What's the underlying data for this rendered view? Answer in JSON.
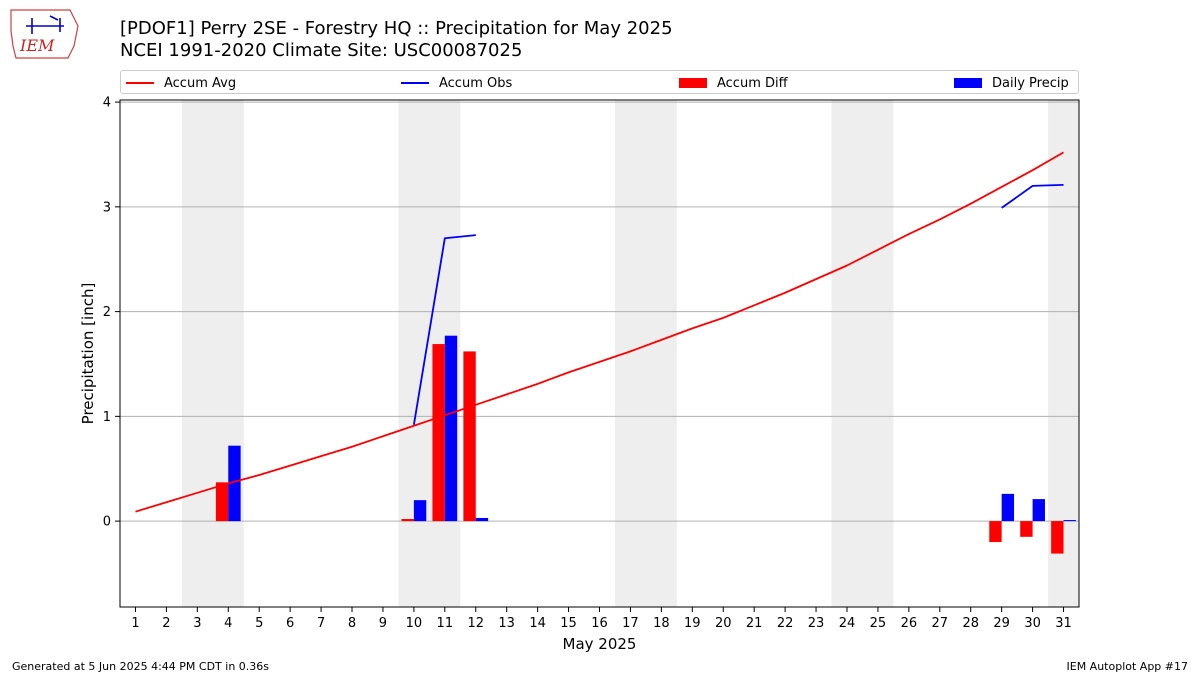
{
  "logo": {
    "text": "IEM"
  },
  "title": "[PDOF1] Perry 2SE - Forestry HQ :: Precipitation for May 2025",
  "subtitle": "NCEI 1991-2020 Climate Site: USC00087025",
  "legend": {
    "items": [
      {
        "label": "Accum Avg",
        "kind": "line",
        "color": "#ff0000"
      },
      {
        "label": "Accum Obs",
        "kind": "line",
        "color": "#0000ff"
      },
      {
        "label": "Accum Diff",
        "kind": "bar",
        "color": "#ff0000"
      },
      {
        "label": "Daily Precip",
        "kind": "bar",
        "color": "#0000ff"
      }
    ]
  },
  "footer": {
    "left": "Generated at 5 Jun 2025 4:44 PM CDT in 0.36s",
    "right": "IEM Autoplot App #17"
  },
  "chart_data": {
    "type": "bar",
    "xlabel": "May 2025",
    "ylabel": "Precipitation [inch]",
    "xlim": [
      0.5,
      31.5
    ],
    "ylim": [
      -0.82,
      4.02
    ],
    "yticks": [
      0,
      1,
      2,
      3,
      4
    ],
    "categories": [
      "1",
      "2",
      "3",
      "4",
      "5",
      "6",
      "7",
      "8",
      "9",
      "10",
      "11",
      "12",
      "13",
      "14",
      "15",
      "16",
      "17",
      "18",
      "19",
      "20",
      "21",
      "22",
      "23",
      "24",
      "25",
      "26",
      "27",
      "28",
      "29",
      "30",
      "31"
    ],
    "weekend_shading": [
      [
        3,
        4
      ],
      [
        10,
        11
      ],
      [
        17,
        18
      ],
      [
        24,
        25
      ],
      [
        31,
        31
      ]
    ],
    "grid": "horizontal",
    "series": [
      {
        "name": "Accum Avg",
        "kind": "line",
        "color": "#ff0000",
        "x": [
          1,
          2,
          3,
          4,
          5,
          6,
          7,
          8,
          9,
          10,
          11,
          12,
          13,
          14,
          15,
          16,
          17,
          18,
          19,
          20,
          21,
          22,
          23,
          24,
          25,
          26,
          27,
          28,
          29,
          30,
          31
        ],
        "values": [
          0.09,
          0.18,
          0.27,
          0.36,
          0.44,
          0.53,
          0.62,
          0.71,
          0.81,
          0.91,
          1.01,
          1.11,
          1.21,
          1.31,
          1.42,
          1.52,
          1.62,
          1.73,
          1.84,
          1.94,
          2.06,
          2.18,
          2.31,
          2.44,
          2.59,
          2.74,
          2.88,
          3.03,
          3.19,
          3.35,
          3.52
        ]
      },
      {
        "name": "Accum Obs",
        "kind": "line",
        "color": "#0000ff",
        "segments": [
          {
            "x": [
              10,
              11,
              12
            ],
            "values": [
              0.92,
              2.7,
              2.73
            ]
          },
          {
            "x": [
              29,
              30,
              31
            ],
            "values": [
              2.99,
              3.2,
              3.21
            ]
          }
        ]
      },
      {
        "name": "Accum Diff",
        "kind": "bar",
        "color": "#ff0000",
        "x": [
          4,
          10,
          11,
          12,
          29,
          30,
          31
        ],
        "values": [
          0.37,
          0.02,
          1.69,
          1.62,
          -0.2,
          -0.15,
          -0.31
        ]
      },
      {
        "name": "Daily Precip",
        "kind": "bar",
        "color": "#0000ff",
        "x": [
          4,
          10,
          11,
          12,
          29,
          30,
          31
        ],
        "values": [
          0.72,
          0.2,
          1.77,
          0.03,
          0.26,
          0.21,
          0.01
        ]
      }
    ]
  }
}
